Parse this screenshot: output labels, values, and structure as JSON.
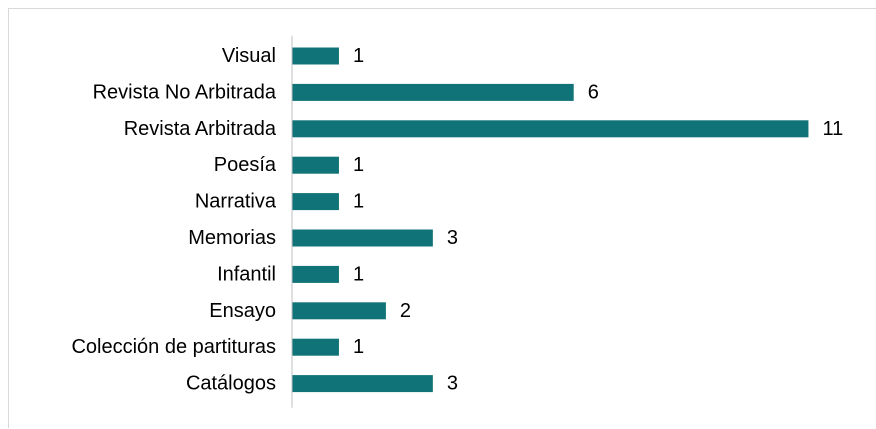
{
  "chart_data": {
    "type": "bar",
    "orientation": "horizontal",
    "categories": [
      "Visual",
      "Revista No Arbitrada",
      "Revista Arbitrada",
      "Poesía",
      "Narrativa",
      "Memorias",
      "Infantil",
      "Ensayo",
      "Colección de partituras",
      "Catálogos"
    ],
    "values": [
      1,
      6,
      11,
      1,
      1,
      3,
      1,
      2,
      1,
      3
    ],
    "title": "",
    "xlabel": "",
    "ylabel": "",
    "xlim": [
      0,
      11
    ],
    "grid": false,
    "legend": "none",
    "data_labels": true,
    "bar_color": "#107378",
    "axis_color": "#bfbfbf"
  }
}
